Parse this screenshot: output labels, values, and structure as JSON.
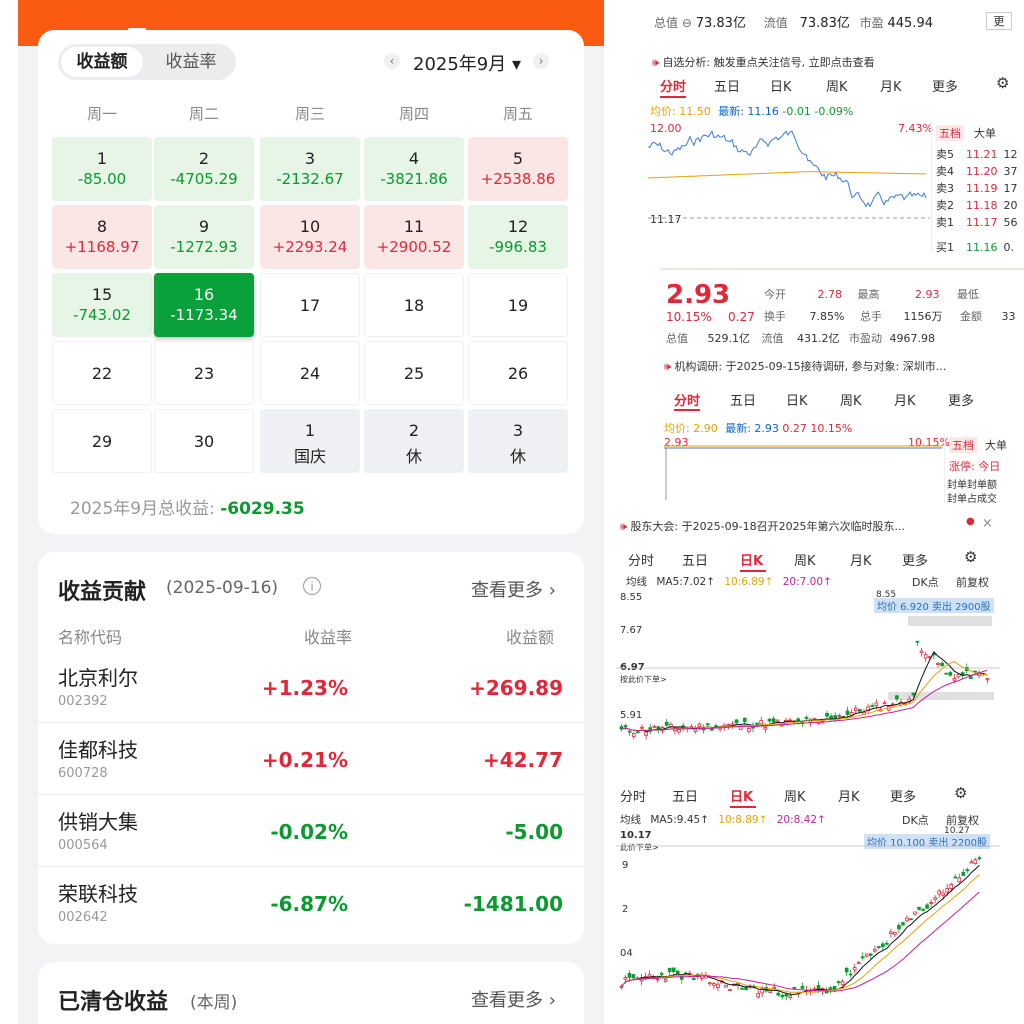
{
  "left": {
    "segments": [
      "收益额",
      "收益率"
    ],
    "month": "2025年9月",
    "weekdays": [
      "周一",
      "周二",
      "周三",
      "周四",
      "周五"
    ],
    "calendar": [
      {
        "day": "1",
        "value": "-85.00",
        "tone": "green"
      },
      {
        "day": "2",
        "value": "-4705.29",
        "tone": "green"
      },
      {
        "day": "3",
        "value": "-2132.67",
        "tone": "green"
      },
      {
        "day": "4",
        "value": "-3821.86",
        "tone": "green"
      },
      {
        "day": "5",
        "value": "+2538.86",
        "tone": "red"
      },
      {
        "day": "8",
        "value": "+1168.97",
        "tone": "red"
      },
      {
        "day": "9",
        "value": "-1272.93",
        "tone": "green"
      },
      {
        "day": "10",
        "value": "+2293.24",
        "tone": "red"
      },
      {
        "day": "11",
        "value": "+2900.52",
        "tone": "red"
      },
      {
        "day": "12",
        "value": "-996.83",
        "tone": "green"
      },
      {
        "day": "15",
        "value": "-743.02",
        "tone": "green"
      },
      {
        "day": "16",
        "value": "-1173.34",
        "tone": "selected"
      },
      {
        "day": "17",
        "value": "",
        "tone": "plain"
      },
      {
        "day": "18",
        "value": "",
        "tone": "plain"
      },
      {
        "day": "19",
        "value": "",
        "tone": "plain"
      },
      {
        "day": "22",
        "value": "",
        "tone": "plain"
      },
      {
        "day": "23",
        "value": "",
        "tone": "plain"
      },
      {
        "day": "24",
        "value": "",
        "tone": "plain"
      },
      {
        "day": "25",
        "value": "",
        "tone": "plain"
      },
      {
        "day": "26",
        "value": "",
        "tone": "plain"
      },
      {
        "day": "29",
        "value": "",
        "tone": "plain"
      },
      {
        "day": "30",
        "value": "",
        "tone": "plain"
      },
      {
        "day": "1",
        "value": "国庆",
        "tone": "holiday"
      },
      {
        "day": "2",
        "value": "休",
        "tone": "holiday"
      },
      {
        "day": "3",
        "value": "休",
        "tone": "holiday"
      }
    ],
    "total_label": "2025年9月总收益:",
    "total_value": "-6029.35",
    "contrib_title": "收益贡献",
    "contrib_date": "(2025-09-16)",
    "more_label": "查看更多",
    "headers": [
      "名称代码",
      "收益率",
      "收益额"
    ],
    "rows": [
      {
        "name": "北京利尔",
        "code": "002392",
        "rate": "+1.23%",
        "amount": "+269.89",
        "tone": "red"
      },
      {
        "name": "佳都科技",
        "code": "600728",
        "rate": "+0.21%",
        "amount": "+42.77",
        "tone": "red"
      },
      {
        "name": "供销大集",
        "code": "000564",
        "rate": "-0.02%",
        "amount": "-5.00",
        "tone": "green"
      },
      {
        "name": "荣联科技",
        "code": "002642",
        "rate": "-6.87%",
        "amount": "-1481.00",
        "tone": "green"
      }
    ],
    "cleared_title": "已清仓收益",
    "cleared_sub": "(本周)"
  },
  "right1": {
    "mcap_label": "总值",
    "mcap": "73.83亿",
    "float_label": "流值",
    "float": "73.83亿",
    "pe_label": "市盈",
    "pe": "445.94",
    "banner": "自选分析: 触发重点关注信号, 立即点击查看",
    "tabs": [
      "分时",
      "五日",
      "日K",
      "周K",
      "月K",
      "更多"
    ],
    "avg_label": "均价: 11.50",
    "last_label": "最新: 11.16",
    "chg": "-0.01",
    "pct": "-0.09%",
    "ymax": "12.00",
    "ymin": "11.17",
    "pct_max": "7.43%",
    "book_tabs": [
      "五档",
      "大单"
    ],
    "book": [
      {
        "label": "卖5",
        "price": "11.21"
      },
      {
        "label": "卖4",
        "price": "11.20"
      },
      {
        "label": "卖3",
        "price": "11.19"
      },
      {
        "label": "卖2",
        "price": "11.18"
      },
      {
        "label": "卖1",
        "price": "11.17"
      },
      {
        "label": "买1",
        "price": "11.16"
      }
    ],
    "book_vol": [
      "12",
      "37",
      "17",
      "20",
      "56",
      "0."
    ]
  },
  "right2": {
    "price": "2.93",
    "pct": "10.15%",
    "chg": "0.27",
    "open_label": "今开",
    "open": "2.78",
    "high_label": "最高",
    "high": "2.93",
    "low_label": "最低",
    "turn_label": "换手",
    "turn": "7.85%",
    "vol_label": "总手",
    "vol": "1156万",
    "amt_label": "金额",
    "amt": "33",
    "mcap_label": "总值",
    "mcap": "529.1亿",
    "float_label": "流值",
    "float": "431.2亿",
    "pe_label": "市盈动",
    "pe": "4967.98",
    "banner": "机构调研: 于2025-09-15接待调研, 参与对象: 深圳市...",
    "tabs": [
      "分时",
      "五日",
      "日K",
      "周K",
      "月K",
      "更多"
    ],
    "avg_label": "均价: 2.90",
    "last_label": "最新: 2.93",
    "chg2": "0.27",
    "pct2": "10.15%",
    "ymax": "2.93",
    "pct_max": "10.15%",
    "book_tabs": [
      "五档",
      "大单"
    ],
    "limit_label": "涨停: 今日",
    "seal_vol": "封单封单额",
    "seal_ratio": "封单占成交"
  },
  "right3": {
    "banner": "股东大会: 于2025-09-18召开2025年第六次临时股东...",
    "tabs": [
      "分时",
      "五日",
      "日K",
      "周K",
      "月K",
      "更多"
    ],
    "ma_label": "均线",
    "ma5": "MA5:7.02↑",
    "ma10": "10:6.89↑",
    "ma20": "20:7.00↑",
    "dk": "DK点",
    "adj": "前复权",
    "y_top": "8.55",
    "y2": "7.67",
    "y3": "6.97",
    "y4": "5.91",
    "order_hint": "按此价下单>",
    "peak": "8.55",
    "trade_note": "均价 6.920 卖出 2900股"
  },
  "right4": {
    "tabs": [
      "分时",
      "五日",
      "日K",
      "周K",
      "月K",
      "更多"
    ],
    "ma_label": "均线",
    "ma5": "MA5:9.45↑",
    "ma10": "10:8.89↑",
    "ma20": "20:8.42↑",
    "dk": "DK点",
    "adj": "前复权",
    "y_top": "10.17",
    "order_hint": "此价下单>",
    "peak": "10.27",
    "trade_note": "均价 10.100 卖出 2200股",
    "y2": "9",
    "y3": "2",
    "y4": "04"
  }
}
